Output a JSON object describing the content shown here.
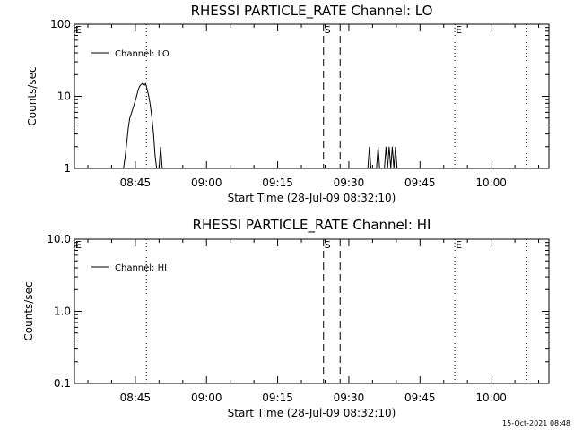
{
  "footer": {
    "timestamp": "15-Oct-2021 08:48"
  },
  "chart_data": [
    {
      "type": "line",
      "title": "RHESSI PARTICLE_RATE Channel: LO",
      "xlabel": "Start Time (28-Jul-09 08:32:10)",
      "ylabel": "Counts/sec",
      "y_scale": "log",
      "ylim": [
        1,
        100
      ],
      "xlim": [
        "08:32:10",
        "10:12:10"
      ],
      "x_ticks": [
        "08:45",
        "09:00",
        "09:15",
        "09:30",
        "09:45",
        "10:00"
      ],
      "y_ticks": [
        "1",
        "10",
        "100"
      ],
      "legend": {
        "entries": [
          "Channel: LO"
        ],
        "position": "top-left"
      },
      "series": [
        {
          "name": "Channel: LO",
          "points": [
            [
              "08:42:30",
              1.0
            ],
            [
              "08:42:50",
              1.4
            ],
            [
              "08:43:10",
              2.2
            ],
            [
              "08:43:30",
              3.6
            ],
            [
              "08:43:50",
              5.0
            ],
            [
              "08:44:10",
              5.8
            ],
            [
              "08:44:30",
              6.8
            ],
            [
              "08:44:50",
              8.0
            ],
            [
              "08:45:10",
              9.5
            ],
            [
              "08:45:30",
              11.5
            ],
            [
              "08:45:50",
              13.5
            ],
            [
              "08:46:10",
              14.5
            ],
            [
              "08:46:30",
              15.0
            ],
            [
              "08:46:50",
              14.0
            ],
            [
              "08:47:10",
              15.0
            ],
            [
              "08:47:30",
              12.5
            ],
            [
              "08:47:50",
              10.0
            ],
            [
              "08:48:10",
              7.5
            ],
            [
              "08:48:30",
              5.0
            ],
            [
              "08:48:50",
              3.0
            ],
            [
              "08:49:10",
              1.5
            ],
            [
              "08:49:30",
              1.0
            ],
            [
              "08:50:00",
              1.0
            ],
            [
              "08:50:20",
              2.0
            ],
            [
              "08:50:40",
              1.0
            ],
            [
              "09:34:00",
              1.0
            ],
            [
              "09:34:20",
              2.0
            ],
            [
              "09:34:40",
              1.0
            ],
            [
              "09:35:50",
              1.0
            ],
            [
              "09:36:10",
              2.0
            ],
            [
              "09:36:30",
              1.0
            ],
            [
              "09:37:30",
              1.0
            ],
            [
              "09:37:50",
              2.0
            ],
            [
              "09:38:10",
              1.0
            ],
            [
              "09:38:30",
              2.0
            ],
            [
              "09:38:50",
              1.0
            ],
            [
              "09:39:10",
              2.0
            ],
            [
              "09:39:30",
              1.0
            ],
            [
              "09:39:50",
              2.0
            ],
            [
              "09:40:10",
              1.0
            ]
          ]
        }
      ],
      "markers": [
        {
          "label": "E",
          "time": "08:32:10",
          "style": "dotted"
        },
        {
          "label": "",
          "time": "08:47:20",
          "style": "dotted"
        },
        {
          "label": "S",
          "time": "09:24:40",
          "style": "dashed"
        },
        {
          "label": "",
          "time": "09:28:10",
          "style": "dashed"
        },
        {
          "label": "E",
          "time": "09:52:20",
          "style": "dotted"
        },
        {
          "label": "",
          "time": "10:07:30",
          "style": "dotted"
        }
      ]
    },
    {
      "type": "line",
      "title": "RHESSI PARTICLE_RATE Channel: HI",
      "xlabel": "Start Time (28-Jul-09 08:32:10)",
      "ylabel": "Counts/sec",
      "y_scale": "log",
      "ylim": [
        0.1,
        10
      ],
      "xlim": [
        "08:32:10",
        "10:12:10"
      ],
      "x_ticks": [
        "08:45",
        "09:00",
        "09:15",
        "09:30",
        "09:45",
        "10:00"
      ],
      "y_ticks": [
        "0.1",
        "1.0",
        "10.0"
      ],
      "legend": {
        "entries": [
          "Channel: HI"
        ],
        "position": "top-left"
      },
      "series": [
        {
          "name": "Channel: HI",
          "points": []
        }
      ],
      "markers": [
        {
          "label": "E",
          "time": "08:32:10",
          "style": "dotted"
        },
        {
          "label": "",
          "time": "08:47:20",
          "style": "dotted"
        },
        {
          "label": "S",
          "time": "09:24:40",
          "style": "dashed"
        },
        {
          "label": "",
          "time": "09:28:10",
          "style": "dashed"
        },
        {
          "label": "E",
          "time": "09:52:20",
          "style": "dotted"
        },
        {
          "label": "",
          "time": "10:07:30",
          "style": "dotted"
        }
      ]
    }
  ]
}
